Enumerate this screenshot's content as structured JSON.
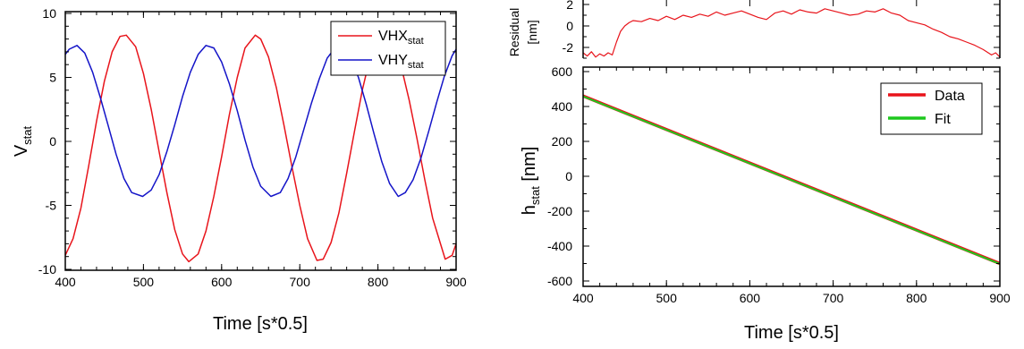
{
  "chart_data": [
    {
      "type": "line",
      "title": "",
      "xlabel": "Time [s*0.5]",
      "ylabel": {
        "base": "V",
        "sub": "stat"
      },
      "xlim": [
        400,
        900
      ],
      "ylim": [
        -10,
        10
      ],
      "xticks": [
        "400",
        "500",
        "600",
        "700",
        "800",
        "900"
      ],
      "yticks": [
        "10",
        "5",
        "0",
        "-5",
        "-10"
      ],
      "legend_position": "top-right",
      "series": [
        {
          "name": {
            "base": "VHX",
            "sub": "stat"
          },
          "color": "#e8141b",
          "x": [
            400,
            410,
            420,
            430,
            440,
            450,
            460,
            470,
            478,
            490,
            500,
            510,
            520,
            530,
            540,
            550,
            558,
            570,
            580,
            590,
            600,
            610,
            620,
            630,
            643,
            650,
            660,
            670,
            680,
            690,
            700,
            710,
            722,
            730,
            740,
            750,
            760,
            770,
            780,
            790,
            807,
            820,
            830,
            840,
            850,
            860,
            870,
            886,
            895,
            900
          ],
          "y": [
            -8.9,
            -7.6,
            -5.2,
            -1.9,
            1.6,
            4.7,
            7.0,
            8.2,
            8.3,
            7.4,
            5.3,
            2.5,
            -0.8,
            -4.0,
            -6.9,
            -8.8,
            -9.4,
            -8.8,
            -7.0,
            -4.3,
            -1.2,
            2.1,
            5.0,
            7.3,
            8.3,
            8.0,
            6.6,
            4.2,
            1.2,
            -2.0,
            -5.0,
            -7.6,
            -9.3,
            -9.2,
            -7.9,
            -5.6,
            -2.5,
            0.8,
            4.0,
            6.6,
            8.3,
            7.6,
            5.8,
            3.2,
            0.2,
            -3.0,
            -6.0,
            -9.2,
            -8.9,
            -8.0
          ]
        },
        {
          "name": {
            "base": "VHY",
            "sub": "stat"
          },
          "color": "#1414c8",
          "x": [
            400,
            405,
            415,
            425,
            435,
            445,
            455,
            465,
            475,
            485,
            499,
            510,
            520,
            530,
            540,
            550,
            560,
            570,
            580,
            590,
            600,
            610,
            620,
            630,
            640,
            650,
            663,
            675,
            685,
            695,
            705,
            715,
            725,
            735,
            745,
            755,
            765,
            775,
            785,
            795,
            805,
            815,
            826,
            835,
            845,
            855,
            865,
            875,
            885,
            895,
            900
          ],
          "y": [
            6.8,
            7.2,
            7.5,
            6.9,
            5.4,
            3.4,
            1.2,
            -1.0,
            -2.9,
            -4.0,
            -4.3,
            -3.8,
            -2.6,
            -0.8,
            1.3,
            3.5,
            5.4,
            6.8,
            7.5,
            7.3,
            6.2,
            4.5,
            2.4,
            0.1,
            -2.0,
            -3.5,
            -4.3,
            -4.0,
            -2.9,
            -1.2,
            0.9,
            3.0,
            4.9,
            6.5,
            7.3,
            7.4,
            6.5,
            5.0,
            2.9,
            0.6,
            -1.6,
            -3.3,
            -4.3,
            -4.0,
            -3.0,
            -1.3,
            0.8,
            3.0,
            5.1,
            6.7,
            7.2
          ]
        }
      ]
    },
    {
      "type": "line",
      "title": "",
      "xlabel": "Time [s*0.5]",
      "ylabel": "",
      "xlim": [
        400,
        900
      ],
      "ylim": [
        -3,
        2
      ],
      "yticks": [
        "2",
        "0",
        "-2"
      ],
      "ylabel_lines": [
        "Residual",
        "[nm]"
      ],
      "series": [
        {
          "name": "",
          "color": "#e8141b",
          "x": [
            400,
            405,
            410,
            415,
            420,
            425,
            430,
            435,
            440,
            445,
            450,
            455,
            460,
            470,
            480,
            490,
            500,
            510,
            520,
            530,
            540,
            550,
            560,
            570,
            580,
            590,
            600,
            610,
            620,
            630,
            640,
            650,
            660,
            670,
            680,
            690,
            700,
            710,
            720,
            730,
            740,
            750,
            760,
            770,
            780,
            790,
            800,
            810,
            820,
            830,
            840,
            850,
            860,
            870,
            880,
            890,
            895,
            900
          ],
          "y": [
            -2.5,
            -2.8,
            -2.4,
            -2.9,
            -2.6,
            -2.8,
            -2.5,
            -2.7,
            -1.5,
            -0.5,
            0.0,
            0.3,
            0.5,
            0.4,
            0.7,
            0.5,
            0.9,
            0.6,
            1.0,
            0.8,
            1.1,
            0.9,
            1.3,
            1.0,
            1.2,
            1.4,
            1.1,
            0.8,
            0.6,
            1.2,
            1.4,
            1.1,
            1.5,
            1.3,
            1.2,
            1.6,
            1.4,
            1.2,
            1.0,
            1.1,
            1.4,
            1.3,
            1.6,
            1.2,
            1.0,
            0.5,
            0.3,
            0.1,
            -0.3,
            -0.6,
            -1.0,
            -1.2,
            -1.5,
            -1.8,
            -2.2,
            -2.7,
            -2.5,
            -2.9
          ]
        }
      ]
    },
    {
      "type": "line",
      "title": "",
      "xlabel": "Time [s*0.5]",
      "ylabel": {
        "base": "h",
        "sub": "stat",
        "suffix": " [nm]"
      },
      "xlim": [
        400,
        900
      ],
      "ylim": [
        -620,
        600
      ],
      "xticks": [
        "400",
        "500",
        "600",
        "700",
        "800",
        "900"
      ],
      "yticks": [
        "600",
        "400",
        "200",
        "0",
        "-200",
        "-400",
        "-600"
      ],
      "legend_position": "top-right",
      "series": [
        {
          "name": "Data",
          "color": "#e8141b",
          "x": [
            400,
            900
          ],
          "y": [
            460,
            -500
          ]
        },
        {
          "name": "Fit",
          "color": "#1ec81e",
          "x": [
            400,
            900
          ],
          "y": [
            458,
            -502
          ]
        }
      ]
    }
  ]
}
